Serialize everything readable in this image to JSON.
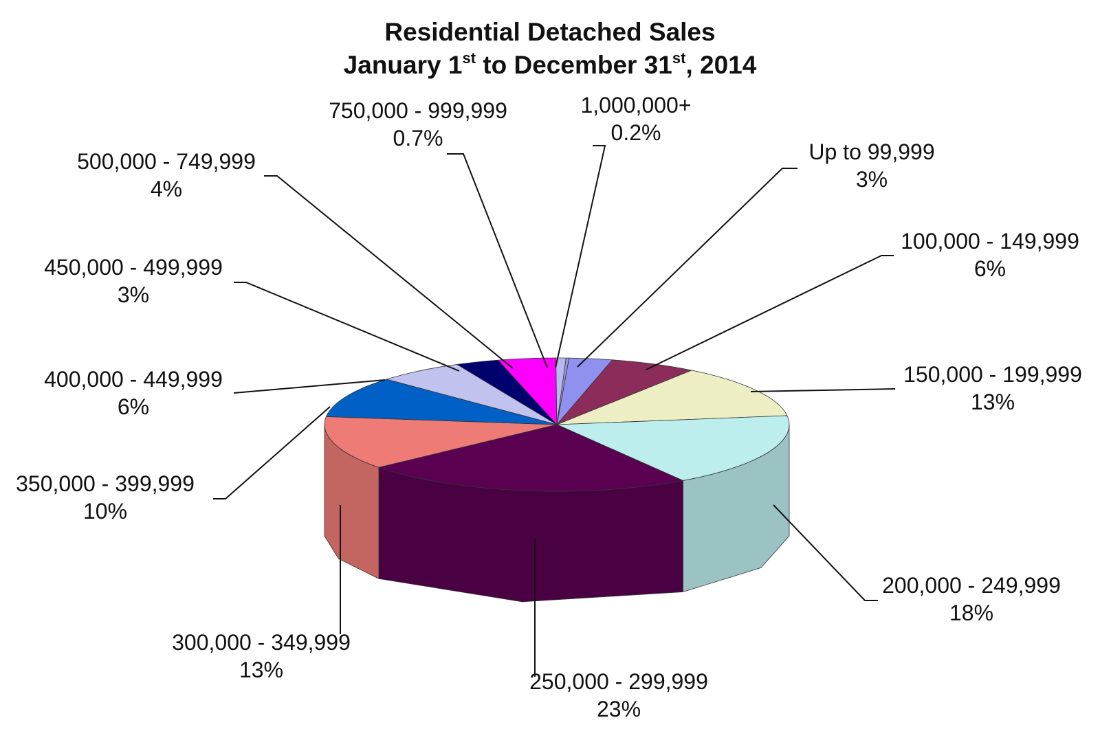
{
  "chart_data": {
    "type": "pie",
    "title": {
      "line1": "Residential Detached Sales",
      "line2": {
        "prefix": "January 1",
        "sup1": "st",
        "middle": " to December 31",
        "sup2": "st",
        "suffix": ", 2014"
      }
    },
    "slices": [
      {
        "name": "Up to 99,999",
        "pct_label": "3%",
        "value": 3,
        "color": "#9090ee"
      },
      {
        "name": "100,000 - 149,999",
        "pct_label": "6%",
        "value": 6,
        "color": "#8b2c5a"
      },
      {
        "name": "150,000 - 199,999",
        "pct_label": "13%",
        "value": 13,
        "color": "#eeeec4"
      },
      {
        "name": "200,000 - 249,999",
        "pct_label": "18%",
        "value": 18,
        "color": "#bdeeee"
      },
      {
        "name": "250,000 - 299,999",
        "pct_label": "23%",
        "value": 23,
        "color": "#5a0152"
      },
      {
        "name": "300,000 - 349,999",
        "pct_label": "13%",
        "value": 13,
        "color": "#ee7b76"
      },
      {
        "name": "350,000 - 399,999",
        "pct_label": "10%",
        "value": 10,
        "color": "#0060c5"
      },
      {
        "name": "400,000 - 449,999",
        "pct_label": "6%",
        "value": 6,
        "color": "#c2c2ee"
      },
      {
        "name": "450,000 - 499,999",
        "pct_label": "3%",
        "value": 3,
        "color": "#00006e"
      },
      {
        "name": "500,000 - 749,999",
        "pct_label": "4%",
        "value": 4,
        "color": "#ff00ff"
      },
      {
        "name": "750,000 - 999,999",
        "pct_label": "0.7%",
        "value": 0.7,
        "color": "#b8b8ee"
      },
      {
        "name": "1,000,000+",
        "pct_label": "0.2%",
        "value": 0.2,
        "color": "#9898dd"
      }
    ],
    "legend": "none",
    "style": "3d-pie"
  }
}
